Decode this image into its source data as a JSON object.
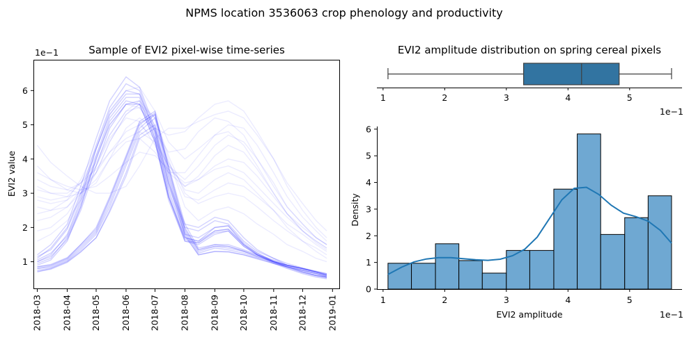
{
  "figure": {
    "suptitle": "NPMS location 3536063 crop phenology and productivity"
  },
  "chart_data": [
    {
      "type": "line",
      "title": "Sample of EVI2 pixel-wise time-series",
      "xlabel": "",
      "ylabel": "EVI2 value",
      "y_multiplier_label": "1e−1",
      "x_ticks": [
        "2018-03",
        "2018-04",
        "2018-05",
        "2018-06",
        "2018-07",
        "2018-08",
        "2018-09",
        "2018-10",
        "2018-11",
        "2018-12",
        "2019-01"
      ],
      "y_ticks": [
        "1",
        "2",
        "3",
        "4",
        "5",
        "6"
      ],
      "xlim": [
        "2018-02-25",
        "2019-01-08"
      ],
      "ylim": [
        0.2,
        6.9
      ],
      "line_color": "#0000ff",
      "line_alpha": 0.08,
      "x": [
        "2018-03-01",
        "2018-03-15",
        "2018-04-01",
        "2018-04-15",
        "2018-05-01",
        "2018-05-15",
        "2018-06-01",
        "2018-06-15",
        "2018-07-01",
        "2018-07-15",
        "2018-08-01",
        "2018-08-15",
        "2018-09-01",
        "2018-09-15",
        "2018-10-01",
        "2018-10-15",
        "2018-11-01",
        "2018-11-15",
        "2018-12-01",
        "2018-12-15",
        "2018-12-26"
      ],
      "series": [
        {
          "values": [
            0.8,
            0.85,
            1.05,
            1.4,
            1.85,
            2.7,
            3.9,
            4.9,
            5.3,
            3.6,
            1.9,
            1.3,
            1.45,
            1.4,
            1.3,
            1.15,
            1.0,
            0.9,
            0.8,
            0.7,
            0.62
          ]
        },
        {
          "values": [
            1.0,
            1.2,
            1.8,
            2.8,
            4.3,
            5.3,
            5.9,
            5.9,
            4.8,
            3.0,
            1.7,
            1.6,
            2.0,
            2.05,
            1.5,
            1.2,
            1.0,
            0.85,
            0.7,
            0.6,
            0.55
          ]
        },
        {
          "values": [
            1.1,
            1.4,
            2.0,
            3.0,
            4.4,
            5.5,
            6.2,
            6.0,
            4.8,
            3.2,
            2.0,
            1.9,
            2.2,
            2.1,
            1.6,
            1.3,
            1.1,
            0.9,
            0.8,
            0.7,
            0.62
          ]
        },
        {
          "values": [
            0.7,
            0.8,
            1.0,
            1.3,
            1.7,
            2.5,
            3.6,
            4.7,
            5.0,
            3.4,
            1.8,
            1.2,
            1.3,
            1.3,
            1.2,
            1.1,
            0.95,
            0.85,
            0.75,
            0.65,
            0.55
          ]
        },
        {
          "values": [
            0.9,
            1.05,
            1.6,
            2.6,
            4.0,
            5.1,
            5.7,
            5.6,
            4.5,
            2.8,
            1.6,
            1.5,
            1.8,
            1.9,
            1.45,
            1.2,
            0.95,
            0.8,
            0.65,
            0.55,
            0.5
          ]
        },
        {
          "values": [
            0.85,
            0.9,
            1.1,
            1.5,
            2.0,
            2.9,
            4.1,
            5.1,
            5.4,
            3.8,
            2.1,
            1.4,
            1.5,
            1.5,
            1.35,
            1.2,
            1.05,
            0.9,
            0.8,
            0.72,
            0.65
          ]
        },
        {
          "values": [
            1.05,
            1.25,
            1.75,
            2.7,
            4.1,
            5.2,
            5.8,
            5.8,
            4.6,
            2.9,
            1.7,
            1.6,
            1.9,
            1.95,
            1.5,
            1.25,
            1.0,
            0.85,
            0.72,
            0.6,
            0.55
          ]
        },
        {
          "values": [
            0.75,
            0.82,
            1.02,
            1.35,
            1.8,
            2.6,
            3.8,
            4.8,
            5.2,
            3.5,
            1.85,
            1.25,
            1.4,
            1.35,
            1.25,
            1.12,
            0.98,
            0.88,
            0.78,
            0.68,
            0.6
          ]
        },
        {
          "values": [
            1.2,
            1.5,
            2.1,
            3.2,
            4.6,
            5.7,
            6.4,
            6.1,
            4.9,
            3.3,
            2.1,
            2.0,
            2.3,
            2.2,
            1.7,
            1.35,
            1.1,
            0.95,
            0.82,
            0.72,
            0.65
          ]
        },
        {
          "values": [
            0.95,
            1.1,
            1.7,
            2.6,
            4.0,
            5.0,
            5.6,
            5.7,
            4.6,
            2.9,
            1.6,
            1.55,
            1.85,
            1.9,
            1.45,
            1.2,
            0.98,
            0.82,
            0.68,
            0.58,
            0.52
          ]
        },
        {
          "values": [
            0.8,
            0.88,
            1.08,
            1.45,
            1.9,
            2.8,
            4.0,
            5.0,
            5.35,
            3.7,
            1.95,
            1.35,
            1.45,
            1.45,
            1.3,
            1.15,
            1.0,
            0.9,
            0.8,
            0.7,
            0.6
          ]
        },
        {
          "values": [
            1.0,
            1.15,
            1.65,
            2.5,
            3.8,
            4.9,
            5.6,
            5.6,
            4.5,
            2.9,
            1.65,
            1.55,
            1.9,
            1.95,
            1.5,
            1.22,
            1.0,
            0.85,
            0.7,
            0.6,
            0.55
          ]
        },
        {
          "values": [
            0.72,
            0.78,
            0.98,
            1.28,
            1.7,
            2.45,
            3.5,
            4.6,
            4.9,
            3.3,
            1.75,
            1.2,
            1.3,
            1.28,
            1.2,
            1.08,
            0.95,
            0.85,
            0.75,
            0.65,
            0.58
          ]
        },
        {
          "values": [
            1.15,
            1.35,
            1.95,
            2.9,
            4.3,
            5.4,
            6.0,
            5.9,
            4.7,
            3.1,
            1.8,
            1.7,
            2.0,
            2.05,
            1.55,
            1.25,
            1.02,
            0.88,
            0.75,
            0.65,
            0.58
          ]
        },
        {
          "values": [
            0.85,
            0.92,
            1.12,
            1.5,
            1.95,
            2.85,
            4.05,
            5.05,
            5.3,
            3.75,
            2.0,
            1.35,
            1.5,
            1.45,
            1.32,
            1.18,
            1.02,
            0.9,
            0.8,
            0.7,
            0.62
          ]
        },
        {
          "values": [
            4.4,
            3.9,
            3.5,
            3.2,
            3.0,
            3.0,
            3.2,
            3.8,
            4.6,
            4.9,
            4.9,
            5.1,
            5.3,
            5.4,
            5.2,
            4.7,
            4.0,
            3.3,
            2.7,
            2.2,
            1.9
          ]
        },
        {
          "values": [
            3.8,
            3.4,
            3.1,
            3.0,
            3.3,
            4.0,
            4.9,
            5.2,
            4.9,
            4.7,
            4.8,
            5.2,
            5.6,
            5.7,
            5.4,
            4.8,
            4.0,
            3.2,
            2.5,
            2.0,
            1.7
          ]
        },
        {
          "values": [
            2.9,
            2.8,
            2.9,
            3.3,
            4.1,
            5.0,
            5.6,
            5.5,
            4.8,
            4.2,
            4.3,
            4.8,
            5.2,
            5.1,
            4.7,
            4.0,
            3.2,
            2.6,
            2.1,
            1.7,
            1.5
          ]
        },
        {
          "values": [
            2.4,
            2.5,
            2.8,
            3.4,
            4.3,
            5.3,
            6.0,
            6.1,
            5.4,
            4.5,
            4.0,
            4.3,
            4.7,
            4.8,
            4.4,
            3.8,
            3.0,
            2.4,
            1.9,
            1.55,
            1.35
          ]
        },
        {
          "values": [
            3.4,
            3.2,
            3.1,
            3.3,
            3.7,
            4.2,
            4.6,
            4.8,
            4.5,
            3.8,
            3.2,
            3.4,
            3.8,
            4.0,
            3.9,
            3.5,
            2.9,
            2.4,
            2.0,
            1.7,
            1.5
          ]
        },
        {
          "values": [
            2.6,
            2.5,
            2.6,
            3.0,
            3.6,
            4.5,
            5.3,
            5.6,
            5.0,
            3.9,
            2.9,
            2.8,
            3.1,
            3.3,
            3.2,
            2.9,
            2.5,
            2.1,
            1.8,
            1.5,
            1.3
          ]
        },
        {
          "values": [
            3.1,
            3.0,
            3.0,
            3.3,
            3.9,
            4.7,
            5.4,
            5.7,
            5.2,
            4.1,
            3.0,
            2.7,
            2.9,
            3.0,
            2.9,
            2.6,
            2.2,
            1.9,
            1.6,
            1.4,
            1.2
          ]
        },
        {
          "values": [
            2.2,
            2.3,
            2.6,
            3.1,
            3.8,
            4.6,
            5.2,
            5.1,
            4.4,
            3.6,
            3.2,
            3.5,
            4.1,
            4.4,
            4.2,
            3.7,
            3.0,
            2.4,
            1.9,
            1.6,
            1.4
          ]
        },
        {
          "values": [
            3.6,
            3.4,
            3.2,
            3.1,
            3.2,
            3.5,
            3.9,
            4.2,
            4.1,
            3.7,
            3.3,
            3.4,
            3.7,
            3.8,
            3.6,
            3.2,
            2.7,
            2.3,
            1.9,
            1.6,
            1.4
          ]
        },
        {
          "values": [
            1.9,
            2.0,
            2.4,
            3.0,
            3.8,
            4.7,
            5.4,
            5.5,
            4.9,
            3.9,
            3.1,
            3.0,
            3.4,
            3.6,
            3.4,
            3.0,
            2.5,
            2.0,
            1.6,
            1.3,
            1.1
          ]
        },
        {
          "values": [
            2.8,
            2.7,
            2.8,
            3.1,
            3.6,
            4.2,
            4.8,
            5.0,
            4.6,
            3.8,
            3.4,
            3.8,
            4.4,
            4.7,
            4.5,
            4.0,
            3.3,
            2.6,
            2.1,
            1.7,
            1.5
          ]
        },
        {
          "values": [
            1.6,
            1.8,
            2.2,
            2.8,
            3.6,
            4.5,
            5.3,
            5.6,
            5.2,
            4.0,
            2.6,
            2.2,
            2.5,
            2.6,
            2.4,
            2.1,
            1.8,
            1.5,
            1.3,
            1.1,
            1.0
          ]
        },
        {
          "values": [
            3.2,
            3.0,
            2.9,
            3.0,
            3.4,
            4.0,
            4.5,
            4.6,
            4.2,
            3.6,
            3.6,
            4.1,
            4.7,
            5.0,
            4.9,
            4.4,
            3.6,
            2.9,
            2.3,
            1.9,
            1.6
          ]
        }
      ]
    },
    {
      "type": "box",
      "title": "EVI2 amplitude distribution on spring cereal pixels",
      "x_multiplier_label": "1e−1",
      "x_ticks": [
        "1",
        "2",
        "3",
        "4",
        "5"
      ],
      "xlim": [
        0.9,
        5.85
      ],
      "whisker_low": 1.08,
      "q1": 3.28,
      "median": 4.22,
      "q3": 4.83,
      "whisker_high": 5.68,
      "color": "#3274a1"
    },
    {
      "type": "histogram",
      "xlabel": "EVI2 amplitude",
      "ylabel": "Density",
      "x_multiplier_label": "1e−1",
      "x_ticks": [
        "1",
        "2",
        "3",
        "4",
        "5"
      ],
      "y_ticks": [
        "0",
        "1",
        "2",
        "3",
        "4",
        "5",
        "6"
      ],
      "xlim": [
        0.9,
        5.85
      ],
      "ylim": [
        0,
        6.1
      ],
      "bin_edges": [
        1.08,
        1.46,
        1.85,
        2.23,
        2.61,
        3.0,
        3.38,
        3.77,
        4.15,
        4.53,
        4.92,
        5.3,
        5.68
      ],
      "densities": [
        0.97,
        0.97,
        1.7,
        1.07,
        0.6,
        1.45,
        1.45,
        3.75,
        5.82,
        2.05,
        2.68,
        3.5
      ],
      "kde_x": [
        1.08,
        1.3,
        1.5,
        1.7,
        1.9,
        2.1,
        2.3,
        2.5,
        2.7,
        2.9,
        3.1,
        3.3,
        3.5,
        3.7,
        3.9,
        4.1,
        4.3,
        4.5,
        4.7,
        4.9,
        5.1,
        5.3,
        5.5,
        5.68
      ],
      "kde_y": [
        0.55,
        0.82,
        1.02,
        1.13,
        1.18,
        1.18,
        1.14,
        1.1,
        1.08,
        1.12,
        1.25,
        1.5,
        1.95,
        2.65,
        3.35,
        3.78,
        3.82,
        3.55,
        3.15,
        2.85,
        2.72,
        2.55,
        2.2,
        1.72
      ],
      "bar_color": "#6fa8d2",
      "kde_color": "#1f77b4"
    }
  ]
}
